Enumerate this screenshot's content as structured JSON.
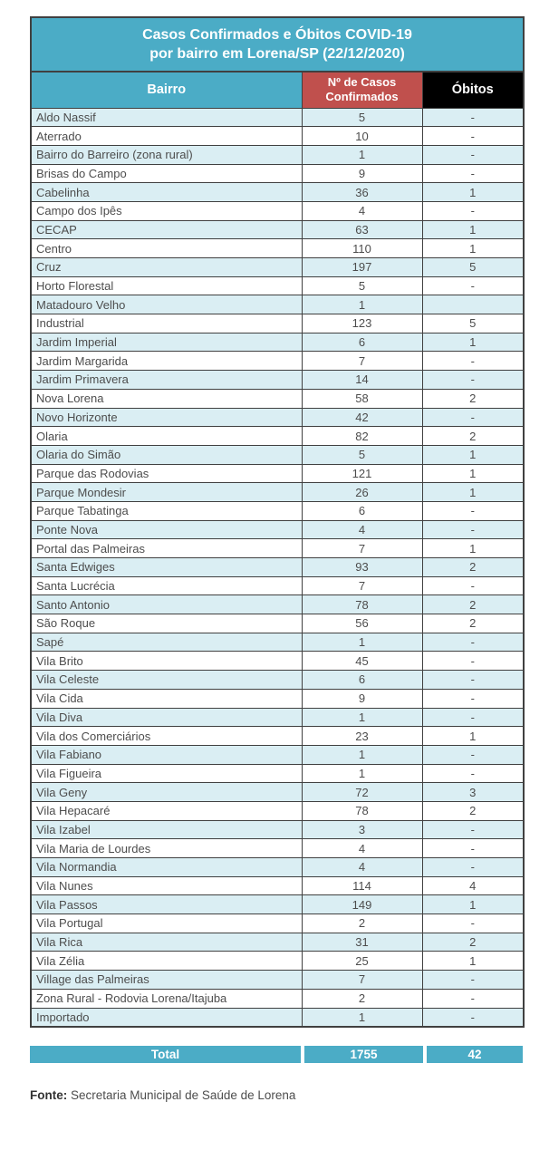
{
  "header": {
    "title_line1": "Casos Confirmados e Óbitos COVID-19",
    "title_line2": "por bairro em Lorena/SP (22/12/2020)"
  },
  "chart_data": {
    "type": "table",
    "title": "Casos Confirmados e Óbitos COVID-19 por bairro em Lorena/SP (22/12/2020)",
    "columns": [
      "Bairro",
      "Nº de Casos Confirmados",
      "Óbitos"
    ],
    "rows": [
      [
        "Aldo Nassif",
        "5",
        "-"
      ],
      [
        "Aterrado",
        "10",
        "-"
      ],
      [
        "Bairro do Barreiro (zona rural)",
        "1",
        "-"
      ],
      [
        "Brisas do Campo",
        "9",
        "-"
      ],
      [
        "Cabelinha",
        "36",
        "1"
      ],
      [
        "Campo dos Ipês",
        "4",
        "-"
      ],
      [
        "CECAP",
        "63",
        "1"
      ],
      [
        "Centro",
        "110",
        "1"
      ],
      [
        "Cruz",
        "197",
        "5"
      ],
      [
        "Horto Florestal",
        "5",
        "-"
      ],
      [
        "Matadouro Velho",
        "1",
        ""
      ],
      [
        "Industrial",
        "123",
        "5"
      ],
      [
        "Jardim Imperial",
        "6",
        "1"
      ],
      [
        "Jardim Margarida",
        "7",
        "-"
      ],
      [
        "Jardim Primavera",
        "14",
        "-"
      ],
      [
        "Nova Lorena",
        "58",
        "2"
      ],
      [
        "Novo Horizonte",
        "42",
        "-"
      ],
      [
        "Olaria",
        "82",
        "2"
      ],
      [
        "Olaria do Simão",
        "5",
        "1"
      ],
      [
        "Parque das Rodovias",
        "121",
        "1"
      ],
      [
        "Parque Mondesir",
        "26",
        "1"
      ],
      [
        "Parque Tabatinga",
        "6",
        "-"
      ],
      [
        "Ponte Nova",
        "4",
        "-"
      ],
      [
        "Portal das Palmeiras",
        "7",
        "1"
      ],
      [
        "Santa Edwiges",
        "93",
        "2"
      ],
      [
        "Santa Lucrécia",
        "7",
        "-"
      ],
      [
        "Santo Antonio",
        "78",
        "2"
      ],
      [
        "São Roque",
        "56",
        "2"
      ],
      [
        "Sapé",
        "1",
        "-"
      ],
      [
        "Vila Brito",
        "45",
        "-"
      ],
      [
        "Vila Celeste",
        "6",
        "-"
      ],
      [
        "Vila Cida",
        "9",
        "-"
      ],
      [
        "Vila Diva",
        "1",
        "-"
      ],
      [
        "Vila dos Comerciários",
        "23",
        "1"
      ],
      [
        "Vila Fabiano",
        "1",
        "-"
      ],
      [
        "Vila Figueira",
        "1",
        "-"
      ],
      [
        "Vila Geny",
        "72",
        "3"
      ],
      [
        "Vila Hepacaré",
        "78",
        "2"
      ],
      [
        "Vila Izabel",
        "3",
        "-"
      ],
      [
        "Vila Maria de Lourdes",
        "4",
        "-"
      ],
      [
        "Vila Normandia",
        "4",
        "-"
      ],
      [
        "Vila Nunes",
        "114",
        "4"
      ],
      [
        "Vila Passos",
        "149",
        "1"
      ],
      [
        "Vila Portugal",
        "2",
        "-"
      ],
      [
        "Vila Rica",
        "31",
        "2"
      ],
      [
        "Vila Zélia",
        "25",
        "1"
      ],
      [
        "Village das Palmeiras",
        "7",
        "-"
      ],
      [
        "Zona Rural - Rodovia Lorena/Itajuba",
        "2",
        "-"
      ],
      [
        "Importado",
        "1",
        "-"
      ]
    ],
    "total": [
      "Total",
      "1755",
      "42"
    ],
    "layout_hints": {
      "stripe_pattern": "odd rows shaded light blue",
      "legend_position": "none",
      "grid": "on"
    }
  },
  "footer": {
    "source_label": "Fonte:",
    "source_text": "Secretaria Municipal de Saúde de Lorena"
  },
  "colors": {
    "teal": "#4BACC6",
    "red": "#C0504D",
    "header_black": "#000000",
    "row_stripe": "#DAEEF3",
    "border": "#404040",
    "body_text": "#4D4D4D",
    "white": "#FFFFFF"
  }
}
